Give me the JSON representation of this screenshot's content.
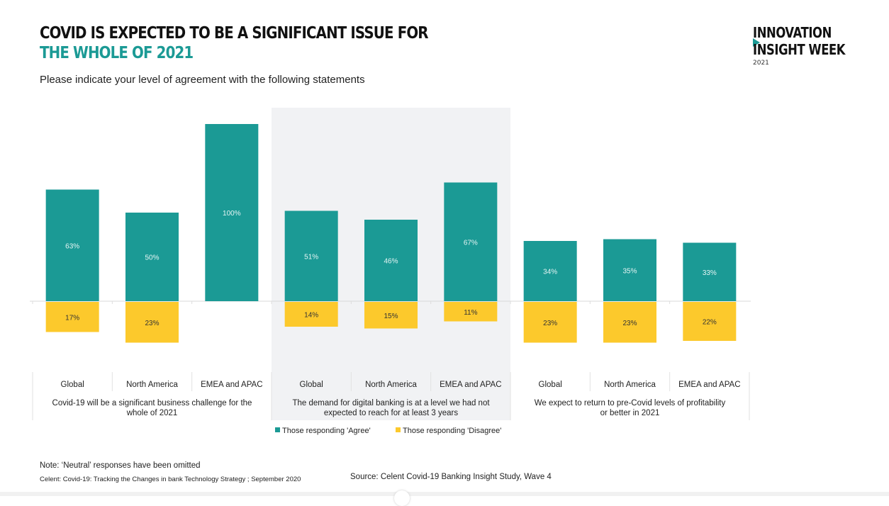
{
  "header": {
    "title_line1": "COVID IS EXPECTED TO BE A SIGNIFICANT ISSUE FOR",
    "title_line2": "THE WHOLE OF 2021",
    "subtitle": "Please indicate your level of agreement with the following statements"
  },
  "logo": {
    "line1": "INNOVATION",
    "line2": "INSIGHT WEEK",
    "year": "2021",
    "accent": "#1b9a95"
  },
  "footer": {
    "note": "Note: ‘Neutral’ responses have been omitted",
    "celent": "Celent: Covid-19: Tracking the Changes in bank Technology Strategy ; September 2020",
    "source": "Source: Celent Covid-19 Banking Insight Study, Wave 4"
  },
  "chart_data": {
    "type": "bar",
    "subtype": "diverging-grouped",
    "title": "COVID IS EXPECTED TO BE A SIGNIFICANT ISSUE FOR THE WHOLE OF 2021",
    "ylim": [
      -25,
      100
    ],
    "grid": false,
    "legend_position": "bottom-center",
    "colors": {
      "agree": "#1b9a95",
      "disagree": "#fcc92c",
      "highlight_bg": "#f1f2f4"
    },
    "groups": [
      {
        "label": "Covid-19 will be a significant business challenge for the whole of 2021",
        "highlighted": false,
        "categories": [
          "Global",
          "North America",
          "EMEA and APAC"
        ],
        "agree": [
          63,
          50,
          100
        ],
        "disagree": [
          17,
          23,
          null
        ]
      },
      {
        "label": "The demand for digital banking is at a level we had not expected to reach for at least 3 years",
        "highlighted": true,
        "categories": [
          "Global",
          "North America",
          "EMEA and APAC"
        ],
        "agree": [
          51,
          46,
          67
        ],
        "disagree": [
          14,
          15,
          11
        ]
      },
      {
        "label": "We expect to return to pre-Covid levels of profitability or better in 2021",
        "highlighted": false,
        "categories": [
          "Global",
          "North America",
          "EMEA and APAC"
        ],
        "agree": [
          34,
          35,
          33
        ],
        "disagree": [
          23,
          23,
          22
        ]
      }
    ],
    "series": [
      {
        "name": "Those responding 'Agree'",
        "key": "agree"
      },
      {
        "name": "Those responding 'Disagree'",
        "key": "disagree"
      }
    ]
  }
}
